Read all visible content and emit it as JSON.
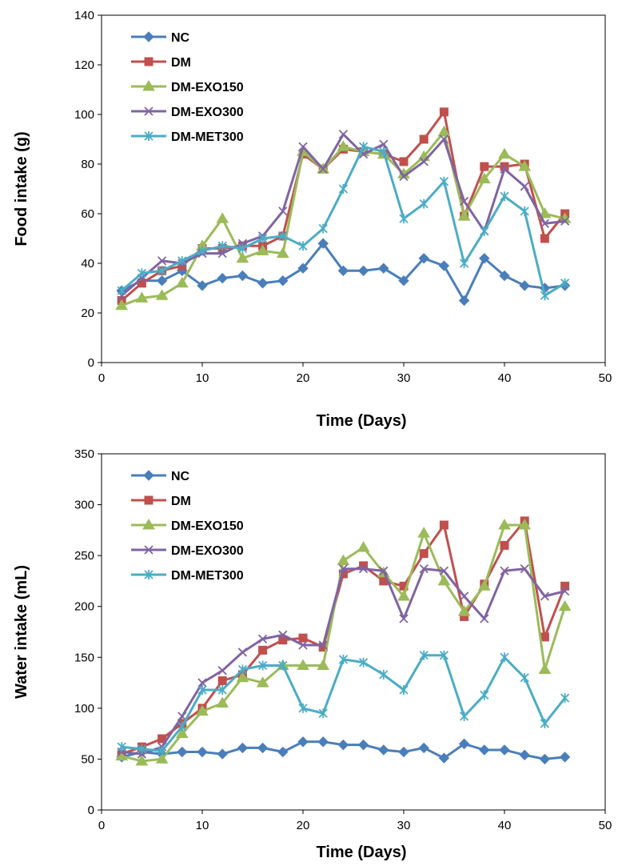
{
  "chart_data": [
    {
      "type": "line",
      "xlabel": "Time (Days)",
      "ylabel": "Food intake (g)",
      "xlim": [
        0,
        50
      ],
      "ylim": [
        0,
        140
      ],
      "xticks": [
        0,
        10,
        20,
        30,
        40,
        50
      ],
      "yticks": [
        0,
        20,
        40,
        60,
        80,
        100,
        120,
        140
      ],
      "legend_position": "top-left",
      "x": [
        2,
        4,
        6,
        8,
        10,
        12,
        14,
        16,
        18,
        20,
        22,
        24,
        26,
        28,
        30,
        32,
        34,
        36,
        38,
        40,
        42,
        44,
        46
      ],
      "series": [
        {
          "name": "NC",
          "color": "#4a7ebb",
          "marker": "diamond",
          "values": [
            29,
            33,
            33,
            37,
            31,
            34,
            35,
            32,
            33,
            38,
            48,
            37,
            37,
            38,
            33,
            42,
            39,
            25,
            42,
            35,
            31,
            30,
            31
          ]
        },
        {
          "name": "DM",
          "color": "#c0504d",
          "marker": "square",
          "values": [
            25,
            32,
            37,
            39,
            46,
            46,
            47,
            47,
            51,
            84,
            78,
            86,
            85,
            84,
            81,
            90,
            101,
            59,
            79,
            79,
            80,
            50,
            60
          ]
        },
        {
          "name": "DM-EXO150",
          "color": "#9bbb59",
          "marker": "triangle",
          "values": [
            23,
            26,
            27,
            32,
            47,
            58,
            42,
            45,
            44,
            85,
            78,
            87,
            85,
            84,
            76,
            83,
            93,
            59,
            74,
            84,
            79,
            60,
            58
          ]
        },
        {
          "name": "DM-EXO300",
          "color": "#8064a2",
          "marker": "x",
          "values": [
            27,
            34,
            41,
            40,
            44,
            44,
            48,
            51,
            61,
            87,
            78,
            92,
            84,
            88,
            75,
            81,
            90,
            65,
            53,
            78,
            71,
            56,
            57
          ]
        },
        {
          "name": "DM-MET300",
          "color": "#4bacc6",
          "marker": "star",
          "values": [
            29,
            36,
            37,
            41,
            45,
            47,
            46,
            50,
            51,
            47,
            54,
            70,
            87,
            85,
            58,
            64,
            73,
            40,
            53,
            67,
            61,
            27,
            32
          ]
        }
      ]
    },
    {
      "type": "line",
      "xlabel": "Time (Days)",
      "ylabel": "Water intake (mL)",
      "xlim": [
        0,
        50
      ],
      "ylim": [
        0,
        350
      ],
      "xticks": [
        0,
        10,
        20,
        30,
        40,
        50
      ],
      "yticks": [
        0,
        50,
        100,
        150,
        200,
        250,
        300,
        350
      ],
      "legend_position": "top-left",
      "x": [
        2,
        4,
        6,
        8,
        10,
        12,
        14,
        16,
        18,
        20,
        22,
        24,
        26,
        28,
        30,
        32,
        34,
        36,
        38,
        40,
        42,
        44,
        46
      ],
      "series": [
        {
          "name": "NC",
          "color": "#4a7ebb",
          "marker": "diamond",
          "values": [
            52,
            57,
            55,
            57,
            57,
            55,
            61,
            61,
            57,
            67,
            67,
            64,
            64,
            59,
            57,
            61,
            51,
            65,
            59,
            59,
            54,
            50,
            52
          ]
        },
        {
          "name": "DM",
          "color": "#c0504d",
          "marker": "square",
          "values": [
            55,
            62,
            70,
            85,
            100,
            127,
            133,
            157,
            167,
            169,
            160,
            232,
            240,
            225,
            220,
            252,
            280,
            190,
            222,
            260,
            284,
            170,
            220
          ]
        },
        {
          "name": "DM-EXO150",
          "color": "#9bbb59",
          "marker": "triangle",
          "values": [
            53,
            48,
            50,
            75,
            97,
            105,
            130,
            125,
            142,
            142,
            142,
            245,
            258,
            233,
            210,
            272,
            225,
            195,
            220,
            280,
            280,
            138,
            200
          ]
        },
        {
          "name": "DM-EXO300",
          "color": "#8064a2",
          "marker": "x",
          "values": [
            57,
            55,
            62,
            92,
            125,
            137,
            155,
            168,
            172,
            162,
            162,
            237,
            237,
            235,
            188,
            237,
            235,
            210,
            188,
            235,
            237,
            210,
            215
          ]
        },
        {
          "name": "DM-MET300",
          "color": "#4bacc6",
          "marker": "star",
          "values": [
            62,
            60,
            58,
            82,
            118,
            118,
            138,
            142,
            142,
            100,
            95,
            148,
            145,
            133,
            118,
            152,
            152,
            92,
            113,
            150,
            130,
            85,
            110
          ]
        }
      ]
    }
  ]
}
